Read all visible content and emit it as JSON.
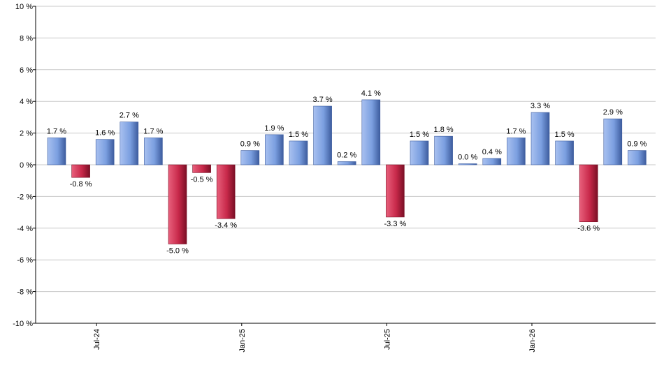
{
  "chart_data": {
    "type": "bar",
    "title": "",
    "xlabel": "",
    "ylabel": "",
    "ylim": [
      -10,
      10
    ],
    "y_ticks": [
      -10,
      -8,
      -6,
      -4,
      -2,
      0,
      2,
      4,
      6,
      8,
      10
    ],
    "y_tick_suffix": " %",
    "grid": true,
    "legend": "none",
    "x_tick_labels": [
      {
        "label": "Jul-24",
        "index": 2
      },
      {
        "label": "Jan-25",
        "index": 8
      },
      {
        "label": "Jul-25",
        "index": 14
      },
      {
        "label": "Jan-26",
        "index": 20
      }
    ],
    "values": [
      1.7,
      -0.8,
      1.6,
      2.7,
      1.7,
      -5.0,
      -0.5,
      -3.4,
      0.9,
      1.9,
      1.5,
      3.7,
      0.2,
      4.1,
      -3.3,
      1.5,
      1.8,
      0.0,
      0.4,
      1.7,
      3.3,
      1.5,
      -3.6,
      2.9,
      0.9
    ],
    "data_labels": [
      "1.7 %",
      "-0.8 %",
      "1.6 %",
      "2.7 %",
      "1.7 %",
      "-5.0 %",
      "-0.5 %",
      "-3.4 %",
      "0.9 %",
      "1.9 %",
      "1.5 %",
      "3.7 %",
      "0.2 %",
      "4.1 %",
      "-3.3 %",
      "1.5 %",
      "1.8 %",
      "0.0 %",
      "0.4 %",
      "1.7 %",
      "3.3 %",
      "1.5 %",
      "-3.6 %",
      "2.9 %",
      "0.9 %"
    ],
    "colors": {
      "positive": "#7b9fe0",
      "negative": "#c8294a",
      "grid": "#c8c8c8",
      "axis": "#000000"
    }
  }
}
